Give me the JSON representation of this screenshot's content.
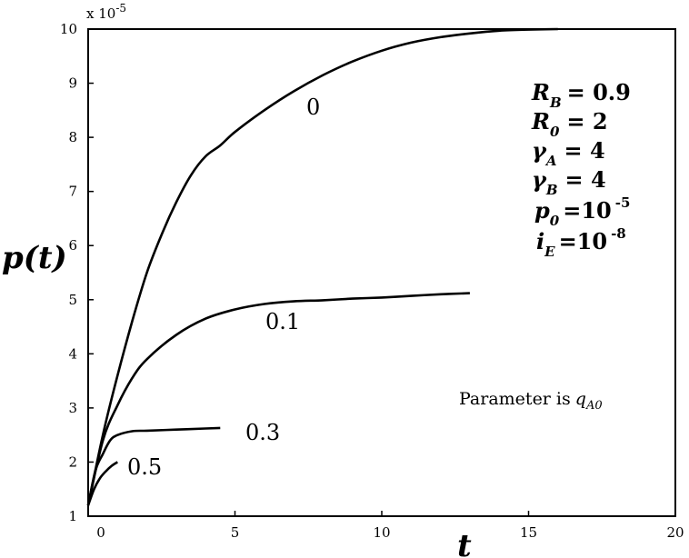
{
  "chart_data": {
    "type": "line",
    "title": "",
    "xlabel": "t",
    "ylabel": "p(t)",
    "y_scale_label": "x 10",
    "y_scale_exponent": "-5",
    "xlim": [
      0,
      20
    ],
    "ylim": [
      1,
      10
    ],
    "x_ticks": [
      "0",
      "5",
      "10",
      "15",
      "20"
    ],
    "y_ticks": [
      "1",
      "2",
      "3",
      "4",
      "5",
      "6",
      "7",
      "8",
      "9",
      "10"
    ],
    "grid": false,
    "series": [
      {
        "name": "0",
        "x": [
          0,
          0.5,
          1,
          1.5,
          2,
          2.5,
          3,
          3.5,
          4,
          4.5,
          5,
          6,
          7,
          8,
          9,
          10,
          11,
          12,
          13,
          14,
          15,
          16
        ],
        "y": [
          1.2,
          2.5,
          3.6,
          4.6,
          5.5,
          6.2,
          6.8,
          7.3,
          7.65,
          7.85,
          8.1,
          8.5,
          8.85,
          9.15,
          9.4,
          9.6,
          9.75,
          9.85,
          9.92,
          9.97,
          9.99,
          10.0
        ]
      },
      {
        "name": "0.1",
        "x": [
          0,
          0.5,
          1,
          1.5,
          2,
          3,
          4,
          5,
          6,
          7,
          8,
          9,
          10,
          11,
          12,
          13
        ],
        "y": [
          1.2,
          2.4,
          3.05,
          3.55,
          3.9,
          4.35,
          4.65,
          4.82,
          4.92,
          4.97,
          4.99,
          5.02,
          5.04,
          5.07,
          5.1,
          5.12
        ]
      },
      {
        "name": "0.3",
        "x": [
          0,
          0.25,
          0.5,
          0.75,
          1,
          1.5,
          2,
          3,
          4,
          4.5
        ],
        "y": [
          1.2,
          1.85,
          2.15,
          2.4,
          2.5,
          2.57,
          2.58,
          2.6,
          2.62,
          2.63
        ]
      },
      {
        "name": "0.5",
        "x": [
          0,
          0.2,
          0.4,
          0.6,
          0.8,
          1.0
        ],
        "y": [
          1.2,
          1.5,
          1.7,
          1.83,
          1.93,
          2.0
        ]
      }
    ],
    "curve_labels": [
      "0",
      "0.1",
      "0.3",
      "0.5"
    ],
    "annotations": {
      "rb": {
        "var": "R",
        "sub": "B",
        "rhs": "= 0.9"
      },
      "r0": {
        "var": "R",
        "sub": "0",
        "rhs": "= 2"
      },
      "ga": {
        "var": "γ",
        "sub": "A",
        "rhs": "= 4"
      },
      "gb": {
        "var": "γ",
        "sub": "B",
        "rhs": "= 4"
      },
      "p0": {
        "var": "p",
        "sub": "0",
        "rhs": "=10",
        "sup": "-5"
      },
      "ie": {
        "var": "i",
        "sub": "E",
        "rhs": "=10",
        "sup": "-8"
      },
      "parameter_text": "Parameter is",
      "parameter_var": "q",
      "parameter_sub": "A0"
    }
  }
}
